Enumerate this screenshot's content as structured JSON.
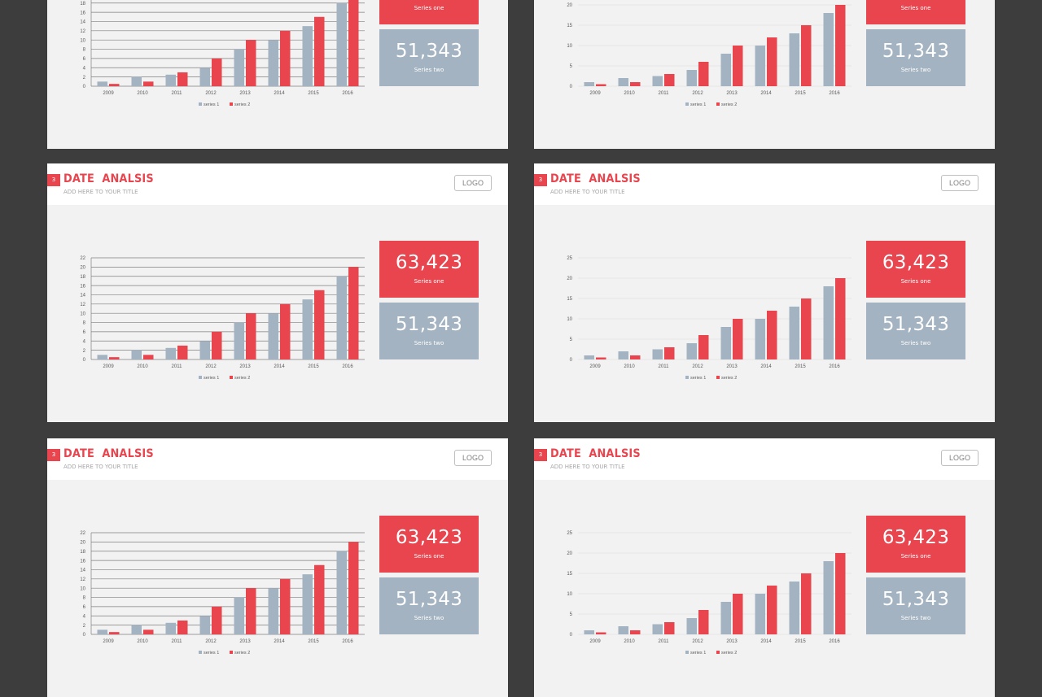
{
  "slide": {
    "badge": "3",
    "title": "DATE  ANALSIS",
    "subtitle": "ADD HERE TO YOUR TITLE",
    "logo_label": "LOGO"
  },
  "stats": [
    {
      "value": "63,423",
      "label": "Series one"
    },
    {
      "value": "51,343",
      "label": "Series two"
    }
  ],
  "colors": {
    "background": "#3d3d3d",
    "slide": "#f2f2f2",
    "accent": "#e8454f",
    "series1": "#a4b3c1",
    "series2": "#e8454f"
  },
  "chart_data": [
    {
      "variant": "gridlines",
      "type": "bar",
      "categories": [
        "2009",
        "2010",
        "2011",
        "2012",
        "2013",
        "2014",
        "2015",
        "2016"
      ],
      "series": [
        {
          "name": "series 1",
          "values": [
            1,
            2,
            2.5,
            4,
            8,
            10,
            13,
            18
          ]
        },
        {
          "name": "series 2",
          "values": [
            0.5,
            1,
            3,
            6,
            10,
            12,
            15,
            20
          ]
        }
      ],
      "ylim": [
        0,
        22
      ],
      "yticks": [
        0,
        2,
        4,
        6,
        8,
        10,
        12,
        14,
        16,
        18,
        20,
        22
      ],
      "grid": true,
      "legend": "bottom"
    },
    {
      "variant": "light",
      "type": "bar",
      "categories": [
        "2009",
        "2010",
        "2011",
        "2012",
        "2013",
        "2014",
        "2015",
        "2016"
      ],
      "series": [
        {
          "name": "series 1",
          "values": [
            1,
            2,
            2.5,
            4,
            8,
            10,
            13,
            18
          ]
        },
        {
          "name": "series 2",
          "values": [
            0.5,
            1,
            3,
            6,
            10,
            12,
            15,
            20
          ]
        }
      ],
      "ylim": [
        0,
        25
      ],
      "yticks": [
        0,
        5,
        10,
        15,
        20,
        25
      ],
      "grid": true,
      "legend": "bottom"
    }
  ]
}
